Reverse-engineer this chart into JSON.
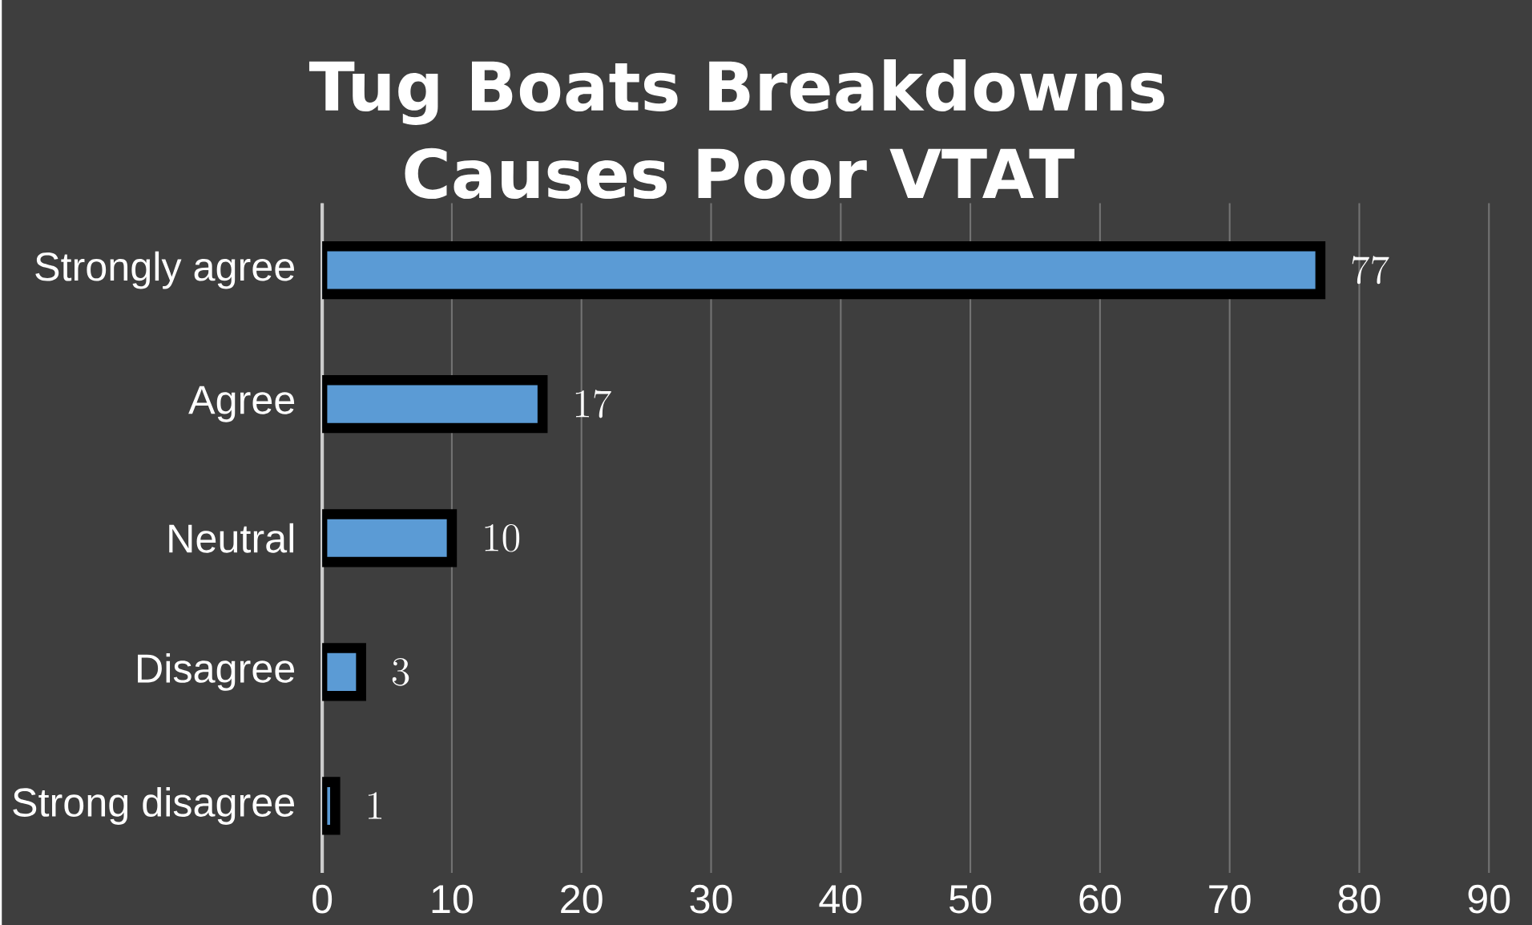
{
  "chart_data": {
    "type": "bar",
    "orientation": "horizontal",
    "title": "Tug Boats Breakdowns Causes Poor VTAT",
    "categories": [
      "Strongly agree",
      "Agree",
      "Neutral",
      "Disagree",
      "Strong disagree"
    ],
    "values": [
      77,
      17,
      10,
      3,
      1
    ],
    "color": "#5b9bd5",
    "xlim": [
      0,
      90
    ],
    "xticks": [
      0,
      10,
      20,
      30,
      40,
      50,
      60,
      70,
      80,
      90
    ],
    "grid": "x",
    "data_labels": true
  }
}
